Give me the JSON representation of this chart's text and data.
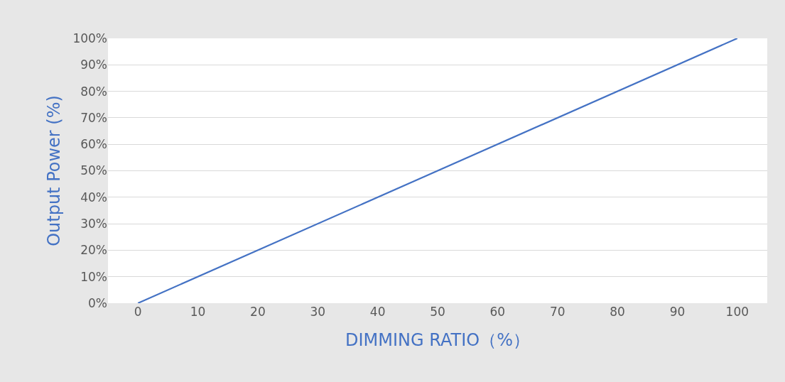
{
  "chart_data": {
    "type": "line",
    "xlabel": "DIMMING RATIO（%）",
    "ylabel": "Output Power (%)",
    "x": [
      0,
      100
    ],
    "series": [
      {
        "color": "#4472c4",
        "values": [
          0,
          100
        ]
      }
    ],
    "xlim": [
      -5,
      105
    ],
    "xticks": [
      0,
      10,
      20,
      30,
      40,
      50,
      60,
      70,
      80,
      90,
      100
    ],
    "ylim": [
      0,
      100
    ],
    "yticks": [
      {
        "value": 0,
        "label": "0%"
      },
      {
        "value": 10,
        "label": "10%"
      },
      {
        "value": 20,
        "label": "20%"
      },
      {
        "value": 30,
        "label": "30%"
      },
      {
        "value": 40,
        "label": "40%"
      },
      {
        "value": 50,
        "label": "50%"
      },
      {
        "value": 60,
        "label": "60%"
      },
      {
        "value": 70,
        "label": "70%"
      },
      {
        "value": 80,
        "label": "80%"
      },
      {
        "value": 90,
        "label": "90%"
      },
      {
        "value": 100,
        "label": "100%"
      }
    ],
    "grid": "y"
  }
}
